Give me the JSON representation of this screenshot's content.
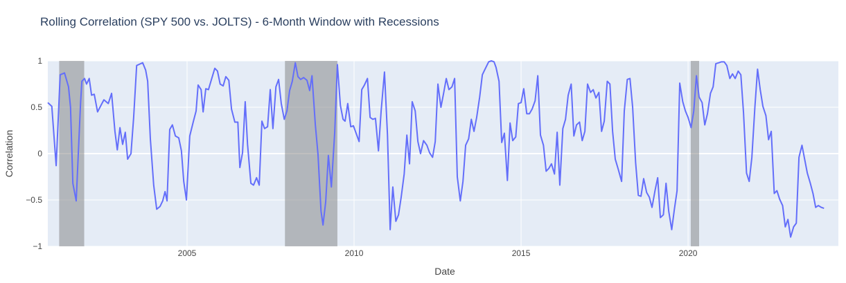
{
  "chart_data": {
    "type": "line",
    "title": "Rolling Correlation (SPY 500 vs. JOLTS) - 6-Month Window with Recessions",
    "x_label": "Date",
    "y_label": "Correlation",
    "color": "#636efa",
    "grid": true,
    "xlim": [
      2000.83,
      2024.5
    ],
    "xticks": [
      2005,
      2010,
      2015,
      2020
    ],
    "ylim": [
      -1,
      1
    ],
    "yticks": [
      {
        "value": -1,
        "label": "−1"
      },
      {
        "value": -0.5,
        "label": "−0.5"
      },
      0,
      0.5,
      1
    ],
    "recession_color": "rgba(128,128,128,0.5)",
    "recessions": [
      {
        "start": 2001.17,
        "end": 2001.92
      },
      {
        "start": 2007.93,
        "end": 2009.5
      },
      {
        "start": 2020.08,
        "end": 2020.33
      }
    ],
    "x": [
      2000.83,
      2000.95,
      2001.08,
      2001.2,
      2001.33,
      2001.45,
      2001.51,
      2001.58,
      2001.68,
      2001.81,
      2001.85,
      2001.93,
      2001.99,
      2002.07,
      2002.14,
      2002.22,
      2002.32,
      2002.45,
      2002.51,
      2002.64,
      2002.74,
      2002.84,
      2002.91,
      2002.99,
      2003.07,
      2003.15,
      2003.22,
      2003.32,
      2003.4,
      2003.49,
      2003.61,
      2003.67,
      2003.76,
      2003.82,
      2003.9,
      2004.0,
      2004.09,
      2004.19,
      2004.27,
      2004.34,
      2004.4,
      2004.48,
      2004.56,
      2004.65,
      2004.75,
      2004.83,
      2004.9,
      2004.98,
      2005.08,
      2005.19,
      2005.27,
      2005.33,
      2005.42,
      2005.48,
      2005.56,
      2005.64,
      2005.73,
      2005.83,
      2005.91,
      2005.99,
      2006.08,
      2006.16,
      2006.25,
      2006.33,
      2006.43,
      2006.52,
      2006.58,
      2006.66,
      2006.74,
      2006.81,
      2006.91,
      2006.99,
      2007.08,
      2007.16,
      2007.24,
      2007.32,
      2007.41,
      2007.49,
      2007.57,
      2007.66,
      2007.74,
      2007.82,
      2007.91,
      2007.99,
      2008.07,
      2008.15,
      2008.24,
      2008.32,
      2008.4,
      2008.49,
      2008.59,
      2008.67,
      2008.74,
      2008.84,
      2008.92,
      2009.01,
      2009.07,
      2009.15,
      2009.23,
      2009.32,
      2009.42,
      2009.5,
      2009.59,
      2009.67,
      2009.73,
      2009.81,
      2009.9,
      2009.98,
      2010.06,
      2010.15,
      2010.23,
      2010.31,
      2010.4,
      2010.48,
      2010.56,
      2010.64,
      2010.73,
      2010.81,
      2010.91,
      2011.0,
      2011.08,
      2011.16,
      2011.25,
      2011.33,
      2011.41,
      2011.5,
      2011.58,
      2011.66,
      2011.74,
      2011.83,
      2011.91,
      2011.99,
      2012.08,
      2012.18,
      2012.26,
      2012.35,
      2012.43,
      2012.51,
      2012.6,
      2012.68,
      2012.76,
      2012.84,
      2012.93,
      2013.01,
      2013.09,
      2013.18,
      2013.26,
      2013.34,
      2013.43,
      2013.51,
      2013.59,
      2013.67,
      2013.76,
      2013.84,
      2013.92,
      2014.03,
      2014.11,
      2014.19,
      2014.25,
      2014.34,
      2014.42,
      2014.5,
      2014.59,
      2014.67,
      2014.75,
      2014.84,
      2014.92,
      2015.0,
      2015.08,
      2015.17,
      2015.25,
      2015.33,
      2015.42,
      2015.5,
      2015.58,
      2015.67,
      2015.75,
      2015.83,
      2015.91,
      2016.0,
      2016.08,
      2016.16,
      2016.25,
      2016.33,
      2016.41,
      2016.5,
      2016.58,
      2016.66,
      2016.75,
      2016.83,
      2016.91,
      2016.99,
      2017.08,
      2017.16,
      2017.24,
      2017.33,
      2017.41,
      2017.49,
      2017.58,
      2017.66,
      2017.74,
      2017.82,
      2017.91,
      2018.01,
      2018.09,
      2018.18,
      2018.26,
      2018.34,
      2018.43,
      2018.51,
      2018.59,
      2018.67,
      2018.76,
      2018.84,
      2018.92,
      2019.01,
      2019.09,
      2019.17,
      2019.26,
      2019.34,
      2019.42,
      2019.51,
      2019.59,
      2019.67,
      2019.75,
      2019.84,
      2019.92,
      2020.0,
      2020.09,
      2020.17,
      2020.25,
      2020.33,
      2020.42,
      2020.5,
      2020.58,
      2020.67,
      2020.75,
      2020.83,
      2020.92,
      2021.0,
      2021.08,
      2021.16,
      2021.25,
      2021.33,
      2021.41,
      2021.5,
      2021.58,
      2021.66,
      2021.75,
      2021.83,
      2021.91,
      2022.0,
      2022.08,
      2022.16,
      2022.24,
      2022.33,
      2022.41,
      2022.49,
      2022.58,
      2022.66,
      2022.74,
      2022.83,
      2022.91,
      2022.99,
      2023.07,
      2023.16,
      2023.24,
      2023.32,
      2023.41,
      2023.49,
      2023.57,
      2023.66,
      2023.74,
      2023.82,
      2023.9,
      2023.99,
      2024.07
    ],
    "values": [
      0.55,
      0.51,
      -0.13,
      0.85,
      0.87,
      0.72,
      0.5,
      -0.32,
      -0.51,
      0.54,
      0.78,
      0.81,
      0.75,
      0.81,
      0.63,
      0.64,
      0.45,
      0.54,
      0.58,
      0.54,
      0.65,
      0.24,
      0.04,
      0.28,
      0.1,
      0.23,
      -0.06,
      0.0,
      0.39,
      0.95,
      0.97,
      0.98,
      0.9,
      0.78,
      0.16,
      -0.34,
      -0.6,
      -0.57,
      -0.51,
      -0.41,
      -0.51,
      0.26,
      0.31,
      0.19,
      0.17,
      0.03,
      -0.3,
      -0.5,
      0.19,
      0.35,
      0.46,
      0.74,
      0.69,
      0.45,
      0.7,
      0.69,
      0.8,
      0.92,
      0.89,
      0.75,
      0.73,
      0.83,
      0.79,
      0.48,
      0.34,
      0.34,
      -0.15,
      0.01,
      0.56,
      0.1,
      -0.32,
      -0.34,
      -0.26,
      -0.34,
      0.35,
      0.27,
      0.29,
      0.69,
      0.27,
      0.72,
      0.8,
      0.54,
      0.37,
      0.46,
      0.68,
      0.78,
      0.98,
      0.83,
      0.8,
      0.82,
      0.79,
      0.68,
      0.84,
      0.31,
      -0.01,
      -0.62,
      -0.77,
      -0.52,
      -0.02,
      -0.36,
      0.23,
      0.96,
      0.52,
      0.37,
      0.35,
      0.54,
      0.29,
      0.3,
      0.22,
      0.13,
      0.69,
      0.74,
      0.81,
      0.39,
      0.37,
      0.38,
      0.03,
      0.46,
      0.88,
      0.2,
      -0.82,
      -0.36,
      -0.73,
      -0.66,
      -0.47,
      -0.22,
      0.2,
      -0.11,
      0.56,
      0.46,
      0.13,
      0.0,
      0.14,
      0.09,
      0.01,
      -0.04,
      0.13,
      0.75,
      0.5,
      0.65,
      0.81,
      0.69,
      0.72,
      0.81,
      -0.25,
      -0.51,
      -0.3,
      0.09,
      0.16,
      0.37,
      0.24,
      0.39,
      0.61,
      0.85,
      0.91,
      0.99,
      1.0,
      0.99,
      0.93,
      0.78,
      0.12,
      0.22,
      -0.29,
      0.33,
      0.14,
      0.18,
      0.54,
      0.55,
      0.7,
      0.43,
      0.43,
      0.48,
      0.57,
      0.84,
      0.2,
      0.09,
      -0.19,
      -0.16,
      -0.11,
      -0.22,
      0.23,
      -0.34,
      0.27,
      0.37,
      0.63,
      0.75,
      0.19,
      0.31,
      0.34,
      0.14,
      0.24,
      0.75,
      0.66,
      0.69,
      0.6,
      0.66,
      0.24,
      0.35,
      0.78,
      0.75,
      0.24,
      -0.06,
      -0.17,
      -0.3,
      0.46,
      0.8,
      0.81,
      0.5,
      -0.1,
      -0.45,
      -0.46,
      -0.27,
      -0.42,
      -0.47,
      -0.58,
      -0.4,
      -0.26,
      -0.69,
      -0.66,
      -0.32,
      -0.62,
      -0.82,
      -0.6,
      -0.4,
      0.76,
      0.56,
      0.46,
      0.39,
      0.28,
      0.46,
      0.84,
      0.61,
      0.55,
      0.31,
      0.43,
      0.65,
      0.72,
      0.97,
      0.98,
      0.99,
      0.99,
      0.95,
      0.81,
      0.86,
      0.81,
      0.89,
      0.85,
      0.44,
      -0.21,
      -0.3,
      -0.04,
      0.5,
      0.91,
      0.69,
      0.51,
      0.41,
      0.15,
      0.24,
      -0.43,
      -0.4,
      -0.49,
      -0.56,
      -0.79,
      -0.71,
      -0.9,
      -0.79,
      -0.75,
      -0.04,
      0.09,
      -0.06,
      -0.21,
      -0.32,
      -0.43,
      -0.58,
      -0.56,
      -0.58,
      -0.59
    ]
  }
}
